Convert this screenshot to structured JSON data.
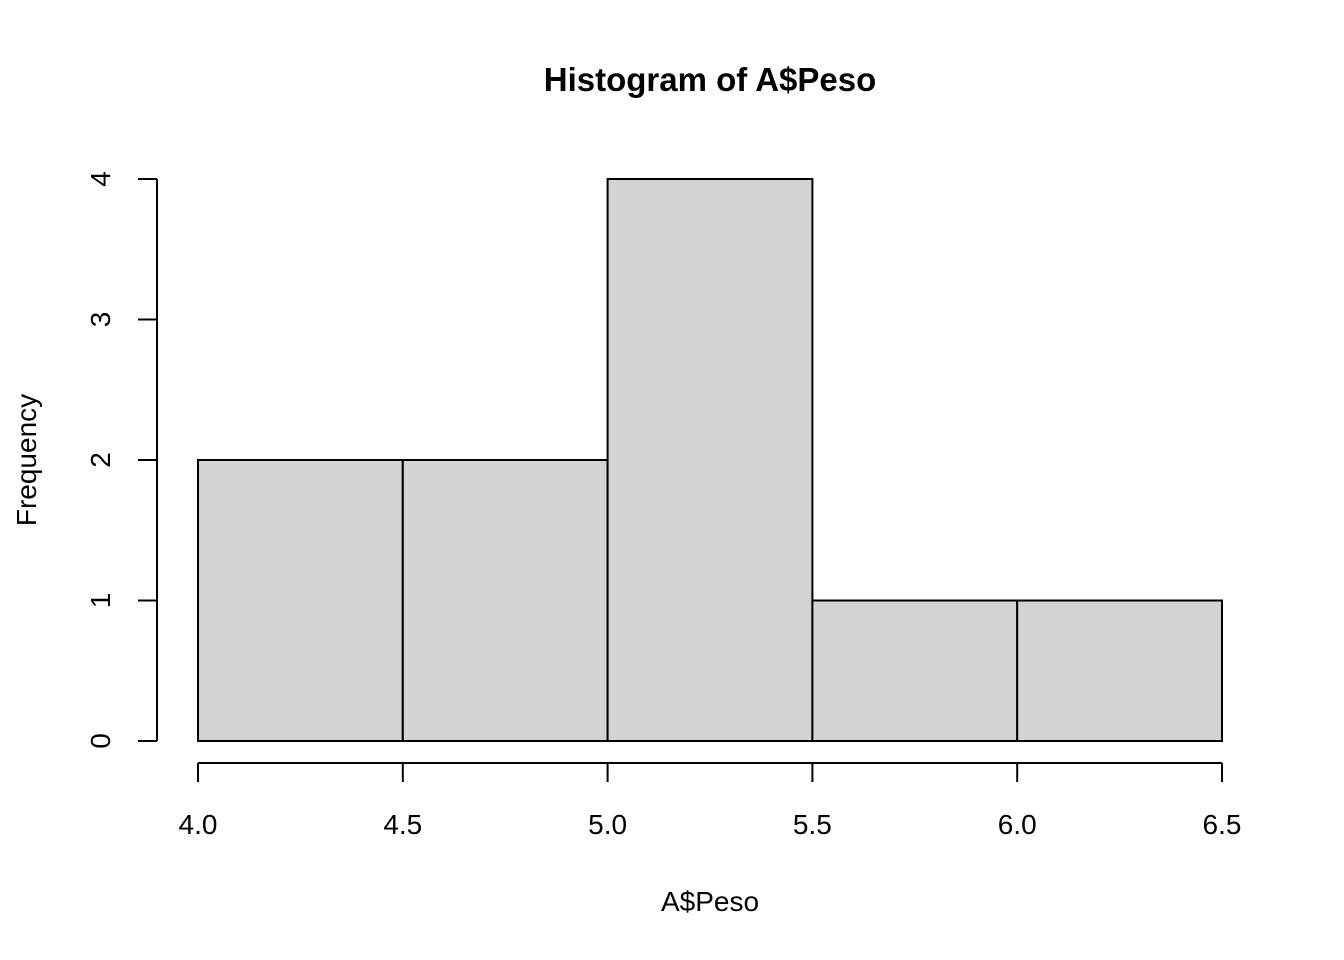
{
  "chart_data": {
    "type": "bar",
    "title": "Histogram of A$Peso",
    "xlabel": "A$Peso",
    "ylabel": "Frequency",
    "bins": [
      {
        "start": 4.0,
        "end": 4.5,
        "count": 2
      },
      {
        "start": 4.5,
        "end": 5.0,
        "count": 2
      },
      {
        "start": 5.0,
        "end": 5.5,
        "count": 4
      },
      {
        "start": 5.5,
        "end": 6.0,
        "count": 1
      },
      {
        "start": 6.0,
        "end": 6.5,
        "count": 1
      }
    ],
    "xlim": [
      4.0,
      6.5
    ],
    "ylim": [
      0,
      4
    ],
    "x_ticks": [
      "4.0",
      "4.5",
      "5.0",
      "5.5",
      "6.0",
      "6.5"
    ],
    "y_ticks": [
      "0",
      "1",
      "2",
      "3",
      "4"
    ],
    "bar_color": "#d3d3d3",
    "edge_color": "#000000",
    "grid": false
  }
}
